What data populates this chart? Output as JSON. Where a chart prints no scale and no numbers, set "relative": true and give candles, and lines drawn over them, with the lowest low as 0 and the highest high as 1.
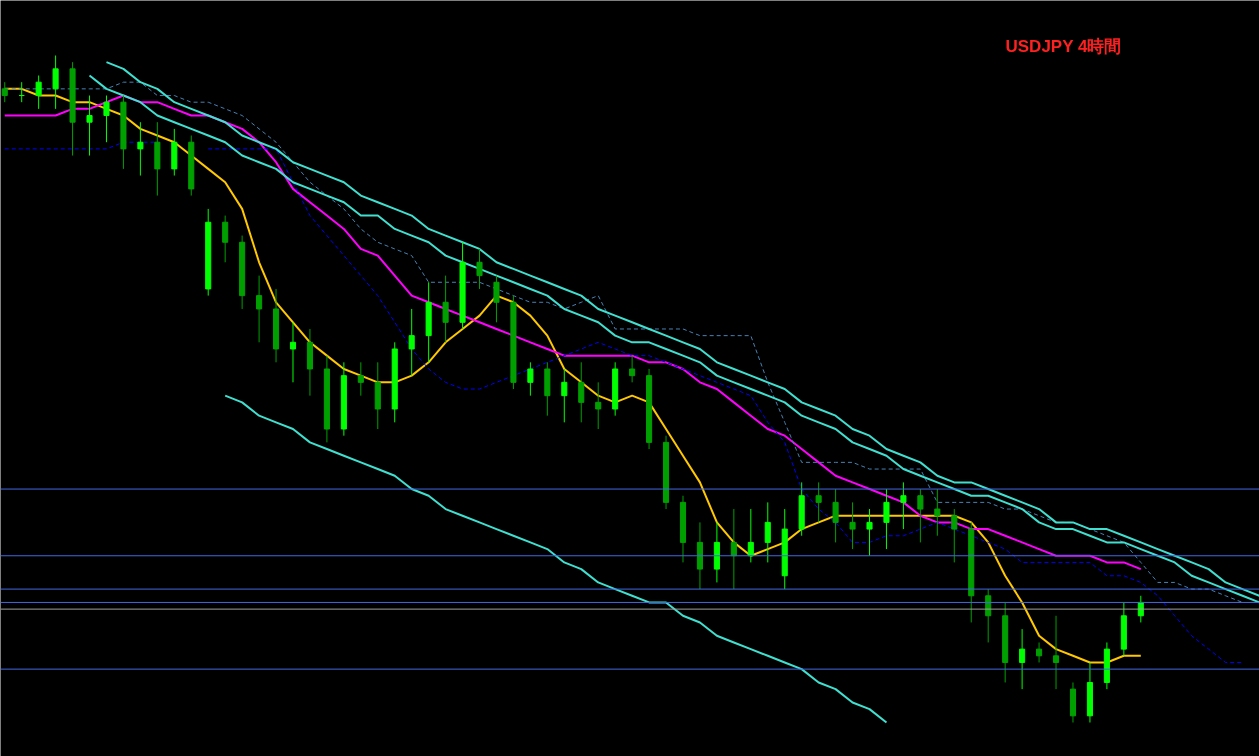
{
  "chart_data": {
    "type": "candlestick",
    "title": "USDJPY  4時間",
    "relative": true,
    "grid": false,
    "colors": [
      "#00a000",
      "#00ff00",
      "#00ff00",
      "#00ff00",
      "#00a000",
      "#00ff00",
      "#00ff00",
      "#00a000",
      "#00ff00",
      "#00a000",
      "#00ff00",
      "#00a000",
      "#00ff00",
      "#00a000",
      "#00a000",
      "#00a000",
      "#00a000",
      "#00ff00",
      "#00a000",
      "#00a000",
      "#00ff00",
      "#00a000",
      "#00a000",
      "#00ff00",
      "#00ff00",
      "#00ff00",
      "#00a000",
      "#00ff00",
      "#00a000",
      "#00a000",
      "#00a000",
      "#00ff00",
      "#00a000",
      "#00ff00",
      "#00a000",
      "#00a000",
      "#00ff00",
      "#00a000",
      "#00a000",
      "#00a000",
      "#00a000",
      "#00a000",
      "#00ff00",
      "#00a000",
      "#00ff00",
      "#00ff00",
      "#00ff00",
      "#00ff00",
      "#00a000",
      "#00a000",
      "#00a000",
      "#00ff00",
      "#00ff00",
      "#00ff00",
      "#00a000",
      "#00a000",
      "#00a000",
      "#00a000",
      "#00a000",
      "#00a000",
      "#00ff00",
      "#00a000",
      "#00a000",
      "#00a000",
      "#00ff00",
      "#00ff00",
      "#00ff00",
      "#00ff00",
      null,
      null,
      null,
      null,
      null,
      null,
      null
    ],
    "categories": [
      null,
      null,
      null,
      null,
      null,
      null,
      null,
      null,
      null,
      null,
      null,
      null,
      null,
      null,
      null,
      null,
      null,
      null,
      null,
      null,
      null,
      null,
      null,
      null,
      null,
      null,
      null,
      null,
      null,
      null,
      null,
      null,
      null,
      null,
      null,
      null,
      null,
      null,
      null,
      null,
      null,
      null,
      null,
      null,
      null,
      null,
      null,
      null,
      null,
      null,
      null,
      null,
      null,
      null,
      null,
      null,
      null,
      null,
      null,
      null,
      null,
      null,
      null,
      null,
      null,
      null,
      null,
      null,
      null,
      null,
      null,
      null,
      null,
      null,
      null
    ],
    "ohlc": [
      [
        0.95,
        0.96,
        0.93,
        0.94
      ],
      [
        0.94,
        0.96,
        0.93,
        0.94
      ],
      [
        0.94,
        0.97,
        0.92,
        0.96
      ],
      [
        0.95,
        1.0,
        0.92,
        0.98
      ],
      [
        0.98,
        0.99,
        0.85,
        0.9
      ],
      [
        0.9,
        0.94,
        0.85,
        0.91
      ],
      [
        0.91,
        0.94,
        0.87,
        0.93
      ],
      [
        0.93,
        0.94,
        0.83,
        0.86
      ],
      [
        0.86,
        0.9,
        0.82,
        0.87
      ],
      [
        0.87,
        0.9,
        0.79,
        0.83
      ],
      [
        0.83,
        0.89,
        0.82,
        0.87
      ],
      [
        0.87,
        0.88,
        0.79,
        0.8
      ],
      [
        0.65,
        0.77,
        0.64,
        0.75
      ],
      [
        0.75,
        0.76,
        0.69,
        0.72
      ],
      [
        0.72,
        0.73,
        0.62,
        0.64
      ],
      [
        0.64,
        0.67,
        0.57,
        0.62
      ],
      [
        0.62,
        0.65,
        0.54,
        0.56
      ],
      [
        0.56,
        0.6,
        0.51,
        0.57
      ],
      [
        0.57,
        0.59,
        0.49,
        0.53
      ],
      [
        0.53,
        0.55,
        0.42,
        0.44
      ],
      [
        0.44,
        0.54,
        0.43,
        0.52
      ],
      [
        0.52,
        0.54,
        0.49,
        0.51
      ],
      [
        0.51,
        0.54,
        0.44,
        0.47
      ],
      [
        0.47,
        0.57,
        0.45,
        0.56
      ],
      [
        0.56,
        0.62,
        0.52,
        0.58
      ],
      [
        0.58,
        0.66,
        0.54,
        0.63
      ],
      [
        0.63,
        0.67,
        0.57,
        0.6
      ],
      [
        0.6,
        0.72,
        0.59,
        0.69
      ],
      [
        0.69,
        0.71,
        0.65,
        0.67
      ],
      [
        0.66,
        0.67,
        0.6,
        0.63
      ],
      [
        0.63,
        0.64,
        0.5,
        0.51
      ],
      [
        0.51,
        0.54,
        0.49,
        0.53
      ],
      [
        0.53,
        0.54,
        0.46,
        0.49
      ],
      [
        0.49,
        0.53,
        0.45,
        0.51
      ],
      [
        0.51,
        0.54,
        0.45,
        0.48
      ],
      [
        0.48,
        0.51,
        0.44,
        0.47
      ],
      [
        0.47,
        0.54,
        0.46,
        0.53
      ],
      [
        0.53,
        0.55,
        0.51,
        0.52
      ],
      [
        0.52,
        0.53,
        0.41,
        0.42
      ],
      [
        0.42,
        0.43,
        0.32,
        0.33
      ],
      [
        0.33,
        0.34,
        0.24,
        0.27
      ],
      [
        0.27,
        0.3,
        0.2,
        0.23
      ],
      [
        0.23,
        0.3,
        0.21,
        0.27
      ],
      [
        0.27,
        0.32,
        0.2,
        0.25
      ],
      [
        0.25,
        0.32,
        0.24,
        0.27
      ],
      [
        0.27,
        0.33,
        0.24,
        0.3
      ],
      [
        0.22,
        0.32,
        0.2,
        0.29
      ],
      [
        0.29,
        0.36,
        0.28,
        0.34
      ],
      [
        0.34,
        0.36,
        0.3,
        0.33
      ],
      [
        0.33,
        0.35,
        0.27,
        0.3
      ],
      [
        0.3,
        0.33,
        0.26,
        0.29
      ],
      [
        0.29,
        0.32,
        0.25,
        0.3
      ],
      [
        0.3,
        0.35,
        0.26,
        0.33
      ],
      [
        0.33,
        0.36,
        0.29,
        0.34
      ],
      [
        0.34,
        0.35,
        0.27,
        0.32
      ],
      [
        0.32,
        0.35,
        0.28,
        0.31
      ],
      [
        0.31,
        0.32,
        0.24,
        0.29
      ],
      [
        0.29,
        0.3,
        0.15,
        0.19
      ],
      [
        0.19,
        0.2,
        0.12,
        0.16
      ],
      [
        0.16,
        0.18,
        0.06,
        0.09
      ],
      [
        0.09,
        0.14,
        0.05,
        0.11
      ],
      [
        0.11,
        0.12,
        0.09,
        0.1
      ],
      [
        0.1,
        0.16,
        0.05,
        0.09
      ],
      [
        0.05,
        0.06,
        0.0,
        0.01
      ],
      [
        0.01,
        0.09,
        0.0,
        0.06
      ],
      [
        0.06,
        0.12,
        0.05,
        0.11
      ],
      [
        0.11,
        0.18,
        0.1,
        0.16
      ],
      [
        0.16,
        0.19,
        0.15,
        0.18
      ],
      null,
      null,
      null,
      null,
      null,
      null,
      null
    ],
    "series": [
      {
        "type": "line",
        "color": "#ffc800",
        "line_style": "solid",
        "values": [
          0.95,
          0.95,
          0.94,
          0.94,
          0.93,
          0.93,
          0.92,
          0.91,
          0.89,
          0.88,
          0.87,
          0.85,
          0.83,
          0.81,
          0.77,
          0.69,
          0.63,
          0.6,
          0.57,
          0.55,
          0.53,
          0.52,
          0.51,
          0.51,
          0.52,
          0.54,
          0.57,
          0.59,
          0.61,
          0.64,
          0.63,
          0.61,
          0.58,
          0.53,
          0.51,
          0.49,
          0.48,
          0.49,
          0.48,
          0.44,
          0.4,
          0.36,
          0.3,
          0.27,
          0.25,
          0.26,
          0.27,
          0.29,
          0.3,
          0.31,
          0.31,
          0.31,
          0.31,
          0.31,
          0.31,
          0.31,
          0.31,
          0.3,
          0.27,
          0.22,
          0.18,
          0.13,
          0.11,
          0.1,
          0.09,
          0.09,
          0.1,
          0.1,
          null,
          null,
          null,
          null,
          null,
          null,
          null
        ]
      },
      {
        "type": "line",
        "color": "#ff00ff",
        "line_style": "solid",
        "values": [
          0.91,
          0.91,
          0.91,
          0.91,
          0.92,
          0.92,
          0.93,
          0.94,
          0.93,
          0.93,
          0.92,
          0.91,
          0.91,
          0.9,
          0.89,
          0.87,
          0.84,
          0.8,
          0.78,
          0.76,
          0.74,
          0.71,
          0.7,
          0.67,
          0.64,
          0.63,
          0.62,
          0.61,
          0.6,
          0.59,
          0.58,
          0.57,
          0.56,
          0.55,
          0.55,
          0.55,
          0.55,
          0.55,
          0.54,
          0.54,
          0.53,
          0.51,
          0.5,
          0.48,
          0.46,
          0.44,
          0.43,
          0.41,
          0.39,
          0.37,
          0.36,
          0.35,
          0.34,
          0.33,
          0.31,
          0.3,
          0.3,
          0.29,
          0.29,
          0.28,
          0.27,
          0.26,
          0.25,
          0.25,
          0.25,
          0.24,
          0.24,
          0.23,
          null,
          null,
          null,
          null,
          null,
          null,
          null
        ]
      },
      {
        "type": "line",
        "color": "#4682b4",
        "line_style": "dashed",
        "values": [
          0.95,
          0.95,
          0.95,
          0.95,
          0.95,
          0.95,
          0.95,
          0.96,
          0.96,
          0.94,
          0.94,
          0.93,
          0.93,
          0.92,
          0.91,
          0.89,
          0.87,
          0.84,
          0.81,
          0.79,
          0.77,
          0.74,
          0.72,
          0.71,
          0.7,
          0.66,
          0.66,
          0.66,
          0.66,
          0.65,
          0.64,
          0.63,
          0.63,
          0.62,
          0.63,
          0.64,
          0.59,
          0.59,
          0.59,
          0.59,
          0.59,
          0.58,
          0.58,
          0.58,
          0.58,
          0.51,
          0.45,
          0.39,
          0.39,
          0.39,
          0.39,
          0.38,
          0.38,
          0.38,
          0.38,
          0.33,
          0.33,
          0.33,
          0.33,
          0.32,
          0.32,
          0.31,
          0.3,
          0.3,
          0.29,
          0.28,
          0.27,
          0.24,
          0.21,
          0.21,
          0.2,
          0.2,
          0.19,
          0.18,
          null
        ]
      },
      {
        "type": "line",
        "color": "#0000ff",
        "line_style": "dashed",
        "values": [
          0.86,
          0.86,
          0.86,
          0.86,
          0.86,
          0.86,
          0.86,
          0.87,
          0.87,
          0.87,
          null,
          null,
          0.86,
          0.86,
          0.86,
          0.86,
          0.86,
          0.81,
          0.76,
          0.73,
          0.7,
          0.67,
          0.64,
          0.6,
          0.56,
          0.53,
          0.51,
          0.5,
          0.5,
          0.51,
          0.52,
          0.53,
          0.54,
          0.55,
          0.56,
          0.57,
          0.56,
          0.55,
          0.55,
          0.54,
          0.53,
          0.52,
          0.51,
          0.5,
          0.49,
          0.45,
          0.42,
          0.35,
          0.32,
          0.3,
          0.27,
          0.27,
          0.28,
          0.28,
          0.29,
          0.3,
          0.29,
          0.28,
          0.27,
          0.26,
          0.24,
          0.24,
          0.24,
          0.24,
          0.24,
          0.22,
          0.22,
          0.21,
          0.19,
          0.16,
          0.13,
          0.11,
          0.09,
          0.09,
          null
        ]
      },
      {
        "type": "line",
        "color": "#40e0d0",
        "line_style": "solid",
        "values": [
          null,
          null,
          null,
          null,
          null,
          null,
          0.99,
          0.98,
          0.96,
          0.95,
          0.93,
          0.92,
          0.91,
          0.9,
          0.88,
          0.87,
          0.86,
          0.84,
          0.83,
          0.82,
          0.81,
          0.79,
          0.78,
          0.77,
          0.76,
          0.74,
          0.73,
          0.72,
          0.71,
          0.69,
          0.68,
          0.67,
          0.66,
          0.65,
          0.64,
          0.62,
          0.61,
          0.6,
          0.59,
          0.58,
          0.57,
          0.56,
          0.54,
          0.53,
          0.52,
          0.51,
          0.5,
          0.48,
          0.47,
          0.46,
          0.44,
          0.43,
          0.41,
          0.4,
          0.39,
          0.37,
          0.36,
          0.36,
          0.35,
          0.34,
          0.33,
          0.32,
          0.3,
          0.3,
          0.29,
          0.29,
          0.28,
          0.27,
          0.26,
          0.25,
          0.24,
          0.23,
          0.21,
          0.2,
          0.19
        ]
      },
      {
        "type": "line",
        "color": "#40e0d0",
        "line_style": "solid",
        "values": [
          null,
          null,
          null,
          null,
          null,
          0.97,
          0.95,
          0.94,
          0.93,
          0.91,
          0.9,
          0.89,
          0.88,
          0.87,
          0.85,
          0.84,
          0.83,
          0.81,
          0.8,
          0.79,
          0.78,
          0.76,
          0.76,
          0.74,
          0.73,
          0.72,
          0.7,
          0.69,
          0.68,
          0.67,
          0.66,
          0.65,
          0.64,
          0.62,
          0.61,
          0.6,
          0.58,
          0.57,
          0.57,
          0.56,
          0.55,
          0.54,
          0.52,
          0.51,
          0.5,
          0.49,
          0.48,
          0.46,
          0.45,
          0.44,
          0.42,
          0.41,
          0.4,
          0.38,
          0.37,
          0.36,
          0.35,
          0.34,
          0.34,
          0.33,
          0.32,
          0.3,
          0.29,
          0.29,
          0.28,
          0.27,
          0.27,
          0.26,
          0.25,
          0.24,
          0.22,
          0.21,
          0.2,
          0.19,
          0.18
        ]
      },
      {
        "type": "line",
        "color": "#40e0d0",
        "line_style": "solid",
        "values": [
          null,
          null,
          null,
          null,
          null,
          null,
          null,
          null,
          null,
          null,
          null,
          null,
          null,
          0.49,
          0.48,
          0.46,
          0.45,
          0.44,
          0.42,
          0.41,
          0.4,
          0.39,
          0.38,
          0.37,
          0.35,
          0.34,
          0.32,
          0.31,
          0.3,
          0.29,
          0.28,
          0.27,
          0.26,
          0.24,
          0.23,
          0.21,
          0.2,
          0.19,
          0.18,
          0.18,
          0.16,
          0.15,
          0.13,
          0.12,
          0.11,
          0.1,
          0.09,
          0.08,
          0.06,
          0.05,
          0.03,
          0.02,
          0.0,
          null,
          null,
          null,
          null,
          null,
          null,
          null,
          null,
          null,
          null,
          null,
          null,
          null,
          null,
          null,
          null,
          null,
          null,
          null,
          null,
          null,
          null
        ]
      }
    ],
    "ref_lines": [
      {
        "axis": "y",
        "value": 0.35,
        "color": "#4169e1"
      },
      {
        "axis": "y",
        "value": 0.25,
        "color": "#4169e1"
      },
      {
        "axis": "y",
        "value": 0.2,
        "color": "#4169e1"
      },
      {
        "axis": "y",
        "value": 0.18,
        "color": "#4169e1"
      },
      {
        "axis": "y",
        "value": 0.17,
        "color": "#a0a0a0"
      },
      {
        "axis": "y",
        "value": 0.08,
        "color": "#4169e1"
      }
    ]
  }
}
